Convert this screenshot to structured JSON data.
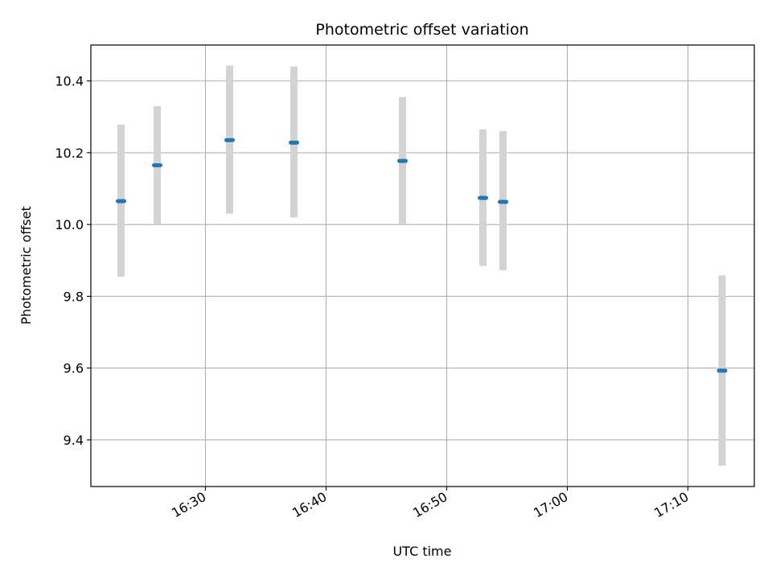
{
  "chart_data": {
    "type": "scatter",
    "title": "Photometric offset variation",
    "xlabel": "UTC time",
    "ylabel": "Photometric offset",
    "x_axis_kind": "time",
    "xlim": [
      "16:20:30",
      "17:15:30"
    ],
    "ylim": [
      9.27,
      10.5
    ],
    "xticks": [
      "16:30",
      "16:40",
      "16:50",
      "17:00",
      "17:10"
    ],
    "yticks": [
      9.4,
      9.6,
      9.8,
      10.0,
      10.2,
      10.4
    ],
    "ytick_labels": [
      "9.4",
      "9.6",
      "9.8",
      "10.0",
      "10.2",
      "10.4"
    ],
    "grid": true,
    "series": [
      {
        "x": [
          "16:23:00",
          "16:26:00",
          "16:32:00",
          "16:37:20",
          "16:46:20",
          "16:53:00",
          "16:54:40",
          "17:12:50"
        ],
        "y": [
          10.065,
          10.165,
          10.235,
          10.228,
          10.177,
          10.074,
          10.063,
          9.593
        ],
        "yerr_low": [
          9.855,
          10.0,
          10.03,
          10.02,
          10.0,
          9.885,
          9.872,
          9.328
        ],
        "yerr_high": [
          10.278,
          10.33,
          10.443,
          10.44,
          10.355,
          10.265,
          10.26,
          9.858
        ],
        "marker_color": "#1f77b4",
        "errorbar_color": "#d3d3d3"
      }
    ]
  }
}
